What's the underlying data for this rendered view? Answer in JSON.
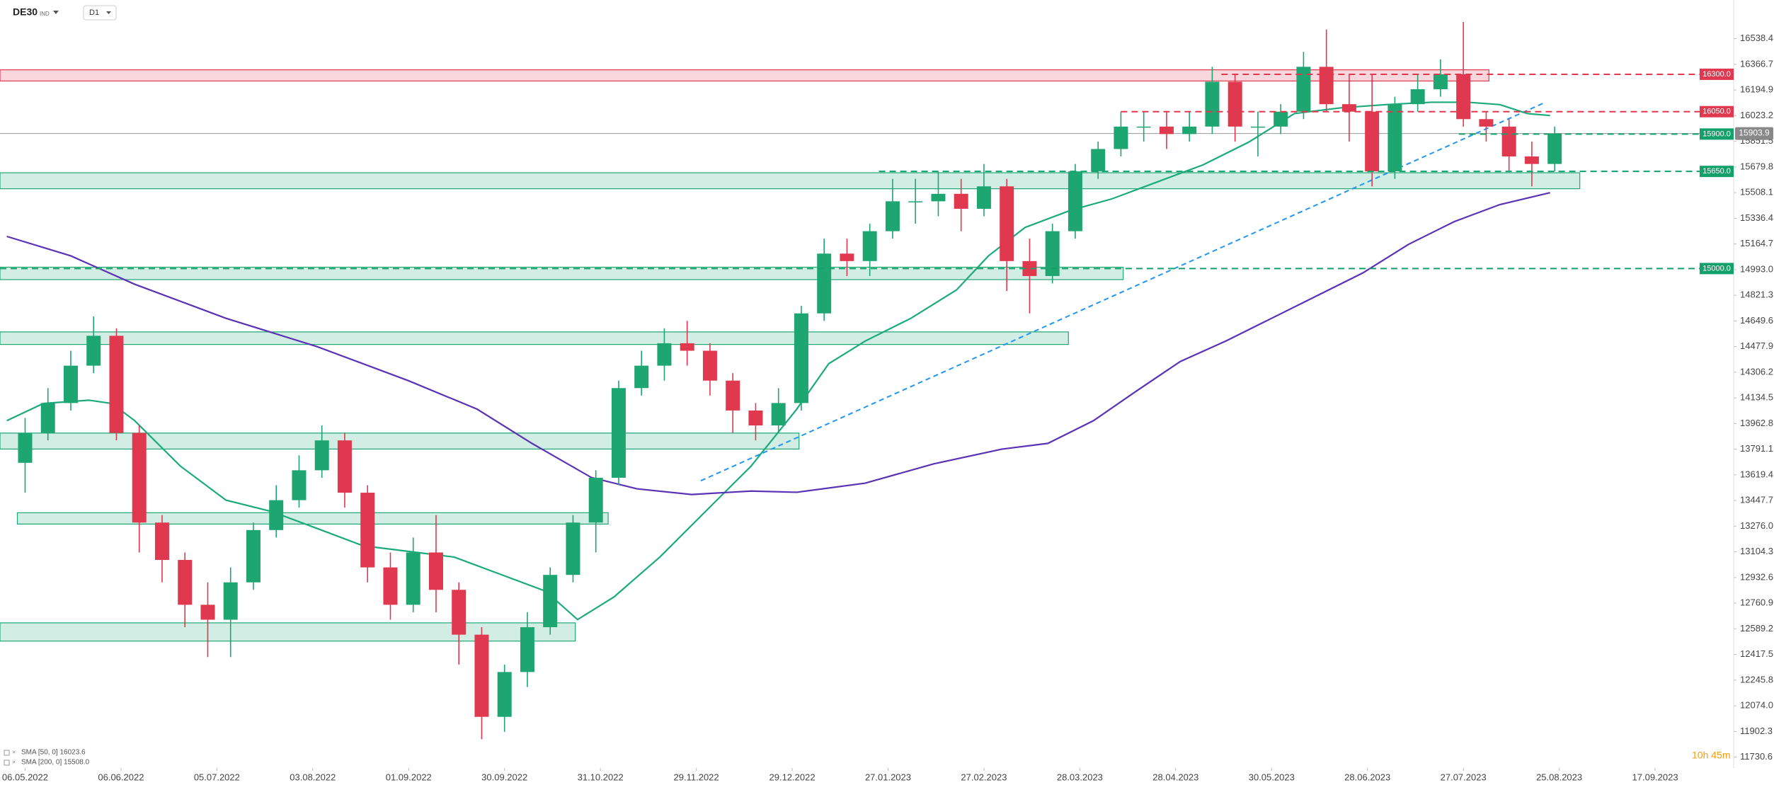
{
  "header": {
    "symbol": "DE30",
    "market": "IND",
    "timeframe": "D1"
  },
  "chart_data": {
    "type": "candlestick",
    "x": [
      0,
      5,
      10,
      15,
      20,
      25,
      30,
      35,
      40,
      45,
      50,
      55,
      60,
      65,
      70,
      75,
      80,
      85,
      90,
      95,
      100,
      105,
      110,
      115,
      120,
      125,
      130,
      135,
      140,
      145,
      150,
      155,
      160,
      165,
      170,
      175,
      180,
      185,
      190,
      195,
      200,
      205,
      210,
      215,
      220,
      225,
      230,
      235,
      240,
      245,
      250,
      255,
      260,
      265,
      270,
      275,
      280,
      285,
      290,
      295,
      300,
      305,
      310,
      315,
      320,
      325,
      330,
      335
    ],
    "open": [
      13700,
      13900,
      14100,
      14350,
      14550,
      13900,
      13300,
      13050,
      12750,
      12650,
      12900,
      13250,
      13450,
      13650,
      13850,
      13500,
      13000,
      12750,
      13100,
      12850,
      12550,
      12000,
      12300,
      12600,
      12950,
      13300,
      13600,
      14200,
      14350,
      14500,
      14450,
      14250,
      14050,
      13950,
      14100,
      14700,
      15100,
      15050,
      15250,
      15450,
      15450,
      15500,
      15400,
      15550,
      15050,
      14950,
      15250,
      15650,
      15800,
      15950,
      15950,
      15900,
      15950,
      16250,
      15950,
      15950,
      16050,
      16350,
      16100,
      16050,
      15650,
      16100,
      16200,
      16300,
      16000,
      15950,
      15750,
      15700
    ],
    "high": [
      14000,
      14200,
      14450,
      14680,
      14600,
      13950,
      13350,
      13100,
      12900,
      13000,
      13300,
      13550,
      13750,
      13950,
      13900,
      13550,
      13100,
      13200,
      13350,
      12900,
      12600,
      12350,
      12700,
      13000,
      13350,
      13650,
      14250,
      14450,
      14600,
      14650,
      14500,
      14300,
      14100,
      14200,
      14750,
      15200,
      15200,
      15300,
      15600,
      15600,
      15650,
      15600,
      15700,
      15600,
      15200,
      15300,
      15700,
      15850,
      16050,
      16050,
      16050,
      16050,
      16350,
      16300,
      16050,
      16100,
      16450,
      16600,
      16300,
      16300,
      16150,
      16300,
      16400,
      16650,
      16050,
      16000,
      15850,
      15950
    ],
    "low": [
      13500,
      13850,
      14050,
      14300,
      13850,
      13100,
      12900,
      12600,
      12400,
      12400,
      12850,
      13200,
      13400,
      13600,
      13400,
      12900,
      12650,
      12700,
      12700,
      12350,
      11850,
      11900,
      12200,
      12550,
      12900,
      13100,
      13550,
      14150,
      14250,
      14350,
      14150,
      13900,
      13850,
      13900,
      14050,
      14650,
      14950,
      14950,
      15200,
      15300,
      15350,
      15250,
      15350,
      14850,
      14700,
      14900,
      15200,
      15600,
      15750,
      15850,
      15800,
      15850,
      15900,
      15850,
      15750,
      15900,
      16000,
      16050,
      15850,
      15550,
      15600,
      16050,
      16150,
      15950,
      15850,
      15650,
      15550,
      15650
    ],
    "close": [
      13900,
      14100,
      14350,
      14550,
      13900,
      13300,
      13050,
      12750,
      12650,
      12900,
      13250,
      13450,
      13650,
      13850,
      13500,
      13000,
      12750,
      13100,
      12850,
      12550,
      12000,
      12300,
      12600,
      12950,
      13300,
      13600,
      14200,
      14350,
      14500,
      14450,
      14250,
      14050,
      13950,
      14100,
      14700,
      15100,
      15050,
      15250,
      15450,
      15450,
      15500,
      15400,
      15550,
      15050,
      14950,
      15250,
      15650,
      15800,
      15950,
      15950,
      15900,
      15950,
      16250,
      15950,
      15950,
      16050,
      16350,
      16100,
      16050,
      15650,
      16100,
      16200,
      16300,
      16000,
      15950,
      15750,
      15700,
      15903.9
    ],
    "up_color": "#1ea672",
    "down_color": "#e0394f",
    "xlim": [
      -5.5,
      374.2
    ],
    "ylim": [
      11657.6,
      16797.1
    ],
    "xticks": [
      {
        "value": 0,
        "label": "06.05.2022"
      },
      {
        "value": 21,
        "label": "06.06.2022"
      },
      {
        "value": 42,
        "label": "05.07.2022"
      },
      {
        "value": 63,
        "label": "03.08.2022"
      },
      {
        "value": 84,
        "label": "01.09.2022"
      },
      {
        "value": 105,
        "label": "30.09.2022"
      },
      {
        "value": 126,
        "label": "31.10.2022"
      },
      {
        "value": 147,
        "label": "29.11.2022"
      },
      {
        "value": 168,
        "label": "29.12.2022"
      },
      {
        "value": 189,
        "label": "27.01.2023"
      },
      {
        "value": 210,
        "label": "27.02.2023"
      },
      {
        "value": 231,
        "label": "28.03.2023"
      },
      {
        "value": 252,
        "label": "28.04.2023"
      },
      {
        "value": 273,
        "label": "30.05.2023"
      },
      {
        "value": 294,
        "label": "28.06.2023"
      },
      {
        "value": 315,
        "label": "27.07.2023"
      },
      {
        "value": 336,
        "label": "25.08.2023"
      },
      {
        "value": 357,
        "label": "17.09.2023"
      }
    ],
    "yticks": [
      11730.6,
      11902.3,
      {
        "value": 12074,
        "label": "12074.0"
      },
      12245.8,
      12417.5,
      12589.2,
      12760.9,
      12932.6,
      13104.3,
      {
        "value": 13276,
        "label": "13276.0"
      },
      13447.7,
      13619.4,
      13791.1,
      13962.8,
      14134.5,
      14306.2,
      14477.9,
      14649.6,
      14821.3,
      {
        "value": 14993,
        "label": "14993.0"
      },
      15164.7,
      15336.4,
      15508.1,
      15679.8,
      15851.5,
      16023.2,
      16194.9,
      16366.7,
      16538.4
    ],
    "last_price": 15903.9,
    "sma": [
      {
        "legend": "SMA [50, 0] 16023.6",
        "color": "#1aaa7c",
        "x": [
          -4,
          4,
          14,
          19,
          24,
          34,
          44,
          54,
          64,
          74,
          84,
          94,
          104,
          114,
          121,
          129,
          139,
          149,
          159,
          169,
          176,
          184,
          194,
          204,
          211,
          219,
          229,
          238,
          248,
          258,
          268,
          278,
          288,
          298,
          308,
          316,
          323,
          329,
          334
        ],
        "values": [
          13982,
          14097,
          14119,
          14097,
          13982,
          13678,
          13450,
          13374,
          13260,
          13145,
          13107,
          13069,
          12955,
          12841,
          12651,
          12803,
          13069,
          13374,
          13678,
          14059,
          14363,
          14515,
          14667,
          14857,
          15085,
          15275,
          15390,
          15466,
          15580,
          15694,
          15846,
          16037,
          16075,
          16097,
          16113,
          16113,
          16097,
          16037,
          16024
        ]
      },
      {
        "legend": "SMA [200, 0] 15508.0",
        "color": "#5a33b5",
        "x": [
          -4,
          10,
          24,
          44,
          64,
          84,
          99,
          111,
          124,
          134,
          146,
          159,
          169,
          184,
          199,
          214,
          224,
          234,
          243,
          253,
          263,
          273,
          283,
          293,
          303,
          313,
          323,
          334
        ],
        "values": [
          15215,
          15085,
          14895,
          14667,
          14477,
          14249,
          14059,
          13830,
          13602,
          13526,
          13488,
          13511,
          13503,
          13564,
          13693,
          13792,
          13830,
          13982,
          14172,
          14378,
          14515,
          14667,
          14819,
          14971,
          15162,
          15314,
          15428,
          15508
        ]
      }
    ],
    "zones": [
      {
        "from": -5.5,
        "to": 320.6,
        "low": 16255,
        "high": 16330,
        "color": "#e0394f"
      },
      {
        "from": -5.5,
        "to": 340.5,
        "low": 15534,
        "high": 15641,
        "color": "#1ea672"
      },
      {
        "from": -5.5,
        "to": 240.5,
        "low": 14926,
        "high": 15009,
        "color": "#1ea672"
      },
      {
        "from": -5.5,
        "to": 228.5,
        "low": 14492,
        "high": 14576,
        "color": "#1ea672"
      },
      {
        "from": -5.5,
        "to": 169.5,
        "low": 13792,
        "high": 13899,
        "color": "#1ea672"
      },
      {
        "from": -1.7,
        "to": 127.7,
        "low": 13290,
        "high": 13366,
        "color": "#1ea672"
      },
      {
        "from": -5.5,
        "to": 120.5,
        "low": 12507,
        "high": 12629,
        "color": "#1ea672"
      }
    ],
    "levels": [
      {
        "value": 16300,
        "label": "16300.0",
        "color": "#e0394f",
        "from": 262
      },
      {
        "value": 16050,
        "label": "16050.0",
        "color": "#e0394f",
        "from": 240
      },
      {
        "value": 15900,
        "label": "15900.0",
        "color": "#13a06a",
        "from": 314
      },
      {
        "value": 15650,
        "label": "15650.0",
        "color": "#13a06a",
        "from": 187
      },
      {
        "value": 15000,
        "label": "15000.0",
        "color": "#13a06a",
        "from": -5.5
      }
    ],
    "trendline": {
      "x": [
        148,
        333
      ],
      "values": [
        13580,
        16113
      ],
      "color": "#2196f3"
    },
    "countdown": "10h 45m"
  }
}
